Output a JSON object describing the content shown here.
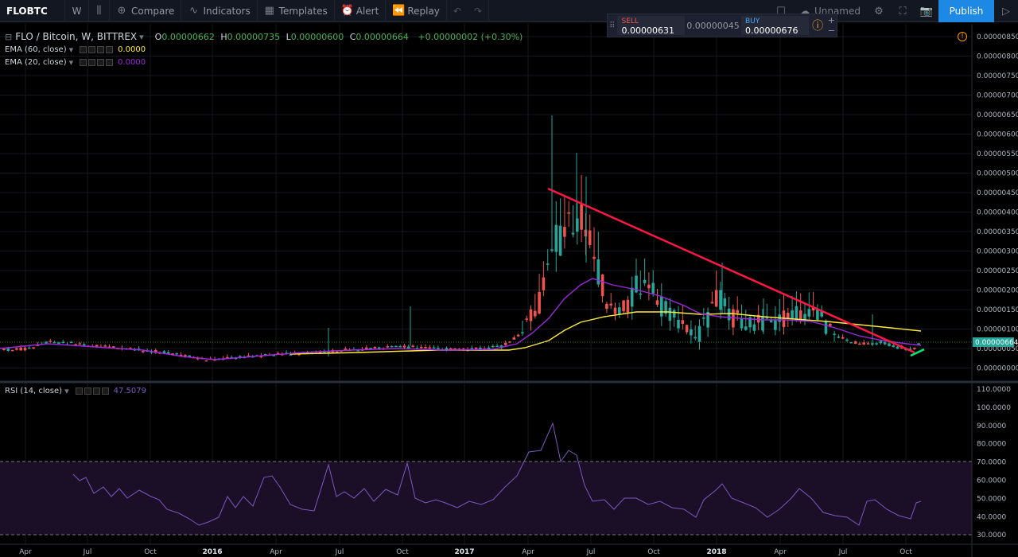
{
  "toolbar": {
    "symbol": "FLOBTC",
    "interval": "W",
    "compare": "Compare",
    "indicators": "Indicators",
    "templates": "Templates",
    "alert": "Alert",
    "replay": "Replay",
    "layout_name": "Unnamed",
    "publish": "Publish"
  },
  "trade": {
    "sell_label": "SELL",
    "sell_price": "0.00000631",
    "spread": "0.00000045",
    "buy_label": "BUY",
    "buy_price": "0.00000676"
  },
  "legend": {
    "title": "FLO / Bitcoin, W, BITTREX",
    "o_label": "O",
    "o": "0.00000662",
    "h_label": "H",
    "h": "0.00000735",
    "l_label": "L",
    "l": "0.00000600",
    "c_label": "C",
    "c": "0.00000664",
    "change": "+0.00000002 (+0.30%)",
    "ema60": "EMA (60, close)",
    "ema60_val": "0.0000",
    "ema60_color": "#ffeb3b",
    "ema20": "EMA (20, close)",
    "ema20_val": "0.0000",
    "ema20_color": "#9c27e0",
    "rsi": "RSI (14, close)",
    "rsi_val": "47.5079",
    "rsi_color": "#7e57c2"
  },
  "price_axis": [
    "0.00000850",
    "0.00000800",
    "0.00000750",
    "0.00000700",
    "0.00000650",
    "0.00000600",
    "0.00000550",
    "0.00000500",
    "0.00000450",
    "0.00000400",
    "0.00000350",
    "0.00000300",
    "0.00000250",
    "0.00000200",
    "0.00000150",
    "0.00000100",
    "0.00000050",
    "0.00000000"
  ],
  "price_last": "0.00000664",
  "rsi_axis": [
    "110.0000",
    "100.0000",
    "90.0000",
    "80.0000",
    "70.0000",
    "60.0000",
    "50.0000",
    "40.0000",
    "30.0000"
  ],
  "time_axis": [
    "Apr",
    "Jul",
    "Oct",
    "2016",
    "Apr",
    "Jul",
    "Oct",
    "2017",
    "Apr",
    "Jul",
    "Oct",
    "2018",
    "Apr",
    "Jul",
    "Oct"
  ],
  "chart_data": [
    {
      "type": "candlestick",
      "title": "FLO / Bitcoin, W, BITTREX",
      "ylim": [
        0,
        8.5e-06
      ],
      "series": [
        {
          "name": "EMA (60, close)",
          "color": "#ffeb3b"
        },
        {
          "name": "EMA (20, close)",
          "color": "#9c27e0"
        }
      ]
    },
    {
      "type": "line",
      "title": "RSI (14, close)",
      "ylim": [
        30,
        110
      ],
      "bands": [
        30,
        70
      ],
      "last": 47.5079
    }
  ]
}
